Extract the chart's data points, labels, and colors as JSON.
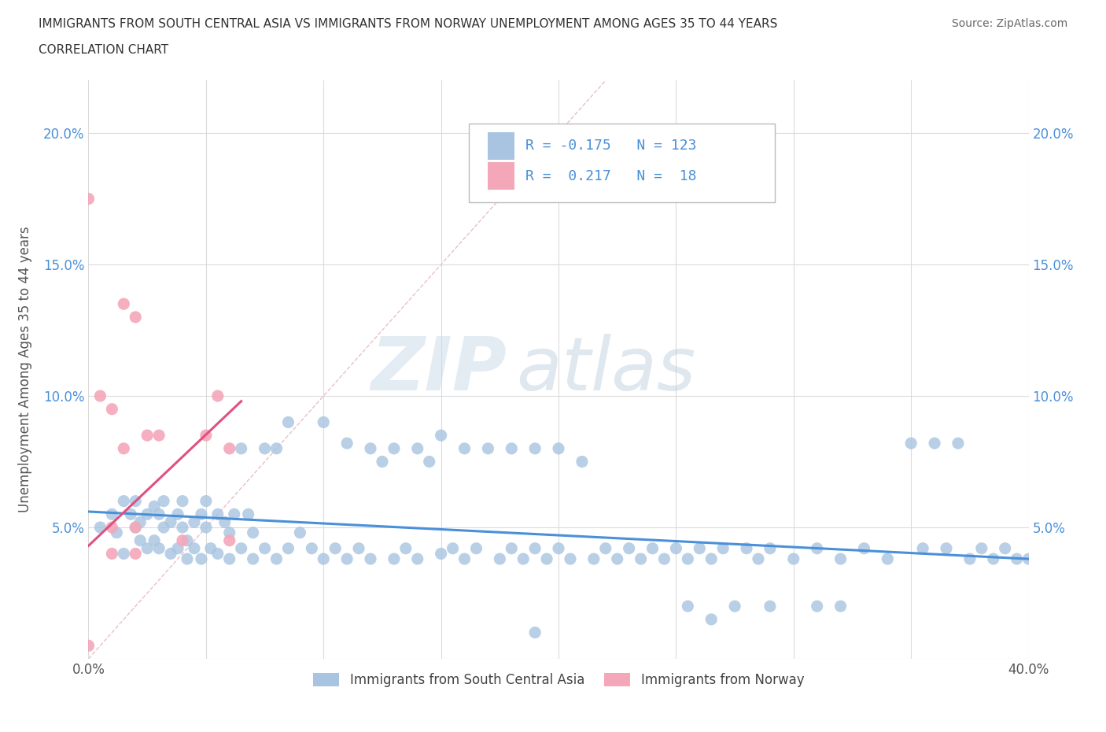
{
  "title_line1": "IMMIGRANTS FROM SOUTH CENTRAL ASIA VS IMMIGRANTS FROM NORWAY UNEMPLOYMENT AMONG AGES 35 TO 44 YEARS",
  "title_line2": "CORRELATION CHART",
  "source_text": "Source: ZipAtlas.com",
  "ylabel": "Unemployment Among Ages 35 to 44 years",
  "xlim": [
    0.0,
    0.4
  ],
  "ylim": [
    0.0,
    0.22
  ],
  "color_blue": "#a8c4e0",
  "color_pink": "#f4a7b9",
  "line_color_blue": "#4a90d9",
  "line_color_pink": "#e05080",
  "watermark_zip": "ZIP",
  "watermark_atlas": "atlas",
  "legend_R1": "-0.175",
  "legend_N1": "123",
  "legend_R2": "0.217",
  "legend_N2": "18",
  "legend_label1": "Immigrants from South Central Asia",
  "legend_label2": "Immigrants from Norway",
  "blue_scatter_x": [
    0.005,
    0.01,
    0.012,
    0.015,
    0.015,
    0.018,
    0.02,
    0.02,
    0.022,
    0.022,
    0.025,
    0.025,
    0.028,
    0.028,
    0.03,
    0.03,
    0.032,
    0.032,
    0.035,
    0.035,
    0.038,
    0.038,
    0.04,
    0.04,
    0.042,
    0.042,
    0.045,
    0.045,
    0.048,
    0.048,
    0.05,
    0.05,
    0.052,
    0.055,
    0.055,
    0.058,
    0.06,
    0.06,
    0.062,
    0.065,
    0.065,
    0.068,
    0.07,
    0.07,
    0.075,
    0.075,
    0.08,
    0.08,
    0.085,
    0.085,
    0.09,
    0.095,
    0.1,
    0.1,
    0.105,
    0.11,
    0.11,
    0.115,
    0.12,
    0.12,
    0.125,
    0.13,
    0.13,
    0.135,
    0.14,
    0.14,
    0.145,
    0.15,
    0.15,
    0.155,
    0.16,
    0.16,
    0.165,
    0.17,
    0.175,
    0.18,
    0.18,
    0.185,
    0.19,
    0.19,
    0.195,
    0.2,
    0.2,
    0.205,
    0.21,
    0.215,
    0.22,
    0.225,
    0.23,
    0.235,
    0.24,
    0.245,
    0.25,
    0.255,
    0.26,
    0.265,
    0.27,
    0.28,
    0.285,
    0.29,
    0.3,
    0.31,
    0.32,
    0.33,
    0.34,
    0.35,
    0.355,
    0.36,
    0.365,
    0.37,
    0.375,
    0.38,
    0.385,
    0.39,
    0.395,
    0.4,
    0.32,
    0.255,
    0.275,
    0.29,
    0.31,
    0.265,
    0.19
  ],
  "blue_scatter_y": [
    0.05,
    0.055,
    0.048,
    0.06,
    0.04,
    0.055,
    0.05,
    0.06,
    0.052,
    0.045,
    0.055,
    0.042,
    0.058,
    0.045,
    0.055,
    0.042,
    0.05,
    0.06,
    0.052,
    0.04,
    0.055,
    0.042,
    0.05,
    0.06,
    0.045,
    0.038,
    0.052,
    0.042,
    0.055,
    0.038,
    0.05,
    0.06,
    0.042,
    0.055,
    0.04,
    0.052,
    0.048,
    0.038,
    0.055,
    0.08,
    0.042,
    0.055,
    0.048,
    0.038,
    0.08,
    0.042,
    0.08,
    0.038,
    0.09,
    0.042,
    0.048,
    0.042,
    0.09,
    0.038,
    0.042,
    0.082,
    0.038,
    0.042,
    0.08,
    0.038,
    0.075,
    0.08,
    0.038,
    0.042,
    0.08,
    0.038,
    0.075,
    0.085,
    0.04,
    0.042,
    0.08,
    0.038,
    0.042,
    0.08,
    0.038,
    0.08,
    0.042,
    0.038,
    0.08,
    0.042,
    0.038,
    0.08,
    0.042,
    0.038,
    0.075,
    0.038,
    0.042,
    0.038,
    0.042,
    0.038,
    0.042,
    0.038,
    0.042,
    0.038,
    0.042,
    0.038,
    0.042,
    0.042,
    0.038,
    0.042,
    0.038,
    0.042,
    0.038,
    0.042,
    0.038,
    0.082,
    0.042,
    0.082,
    0.042,
    0.082,
    0.038,
    0.042,
    0.038,
    0.042,
    0.038,
    0.038,
    0.02,
    0.02,
    0.02,
    0.02,
    0.02,
    0.015,
    0.01
  ],
  "pink_scatter_x": [
    0.0,
    0.0,
    0.005,
    0.01,
    0.01,
    0.01,
    0.015,
    0.015,
    0.02,
    0.02,
    0.02,
    0.025,
    0.03,
    0.04,
    0.05,
    0.055,
    0.06,
    0.06
  ],
  "pink_scatter_y": [
    0.175,
    0.005,
    0.1,
    0.095,
    0.05,
    0.04,
    0.135,
    0.08,
    0.05,
    0.04,
    0.13,
    0.085,
    0.085,
    0.045,
    0.085,
    0.1,
    0.08,
    0.045
  ],
  "blue_trend_x": [
    0.0,
    0.4
  ],
  "blue_trend_y": [
    0.056,
    0.038
  ],
  "pink_trend_x": [
    0.0,
    0.065
  ],
  "pink_trend_y": [
    0.043,
    0.098
  ],
  "diag_line_x": [
    0.0,
    0.22
  ],
  "diag_line_y": [
    0.0,
    0.22
  ]
}
